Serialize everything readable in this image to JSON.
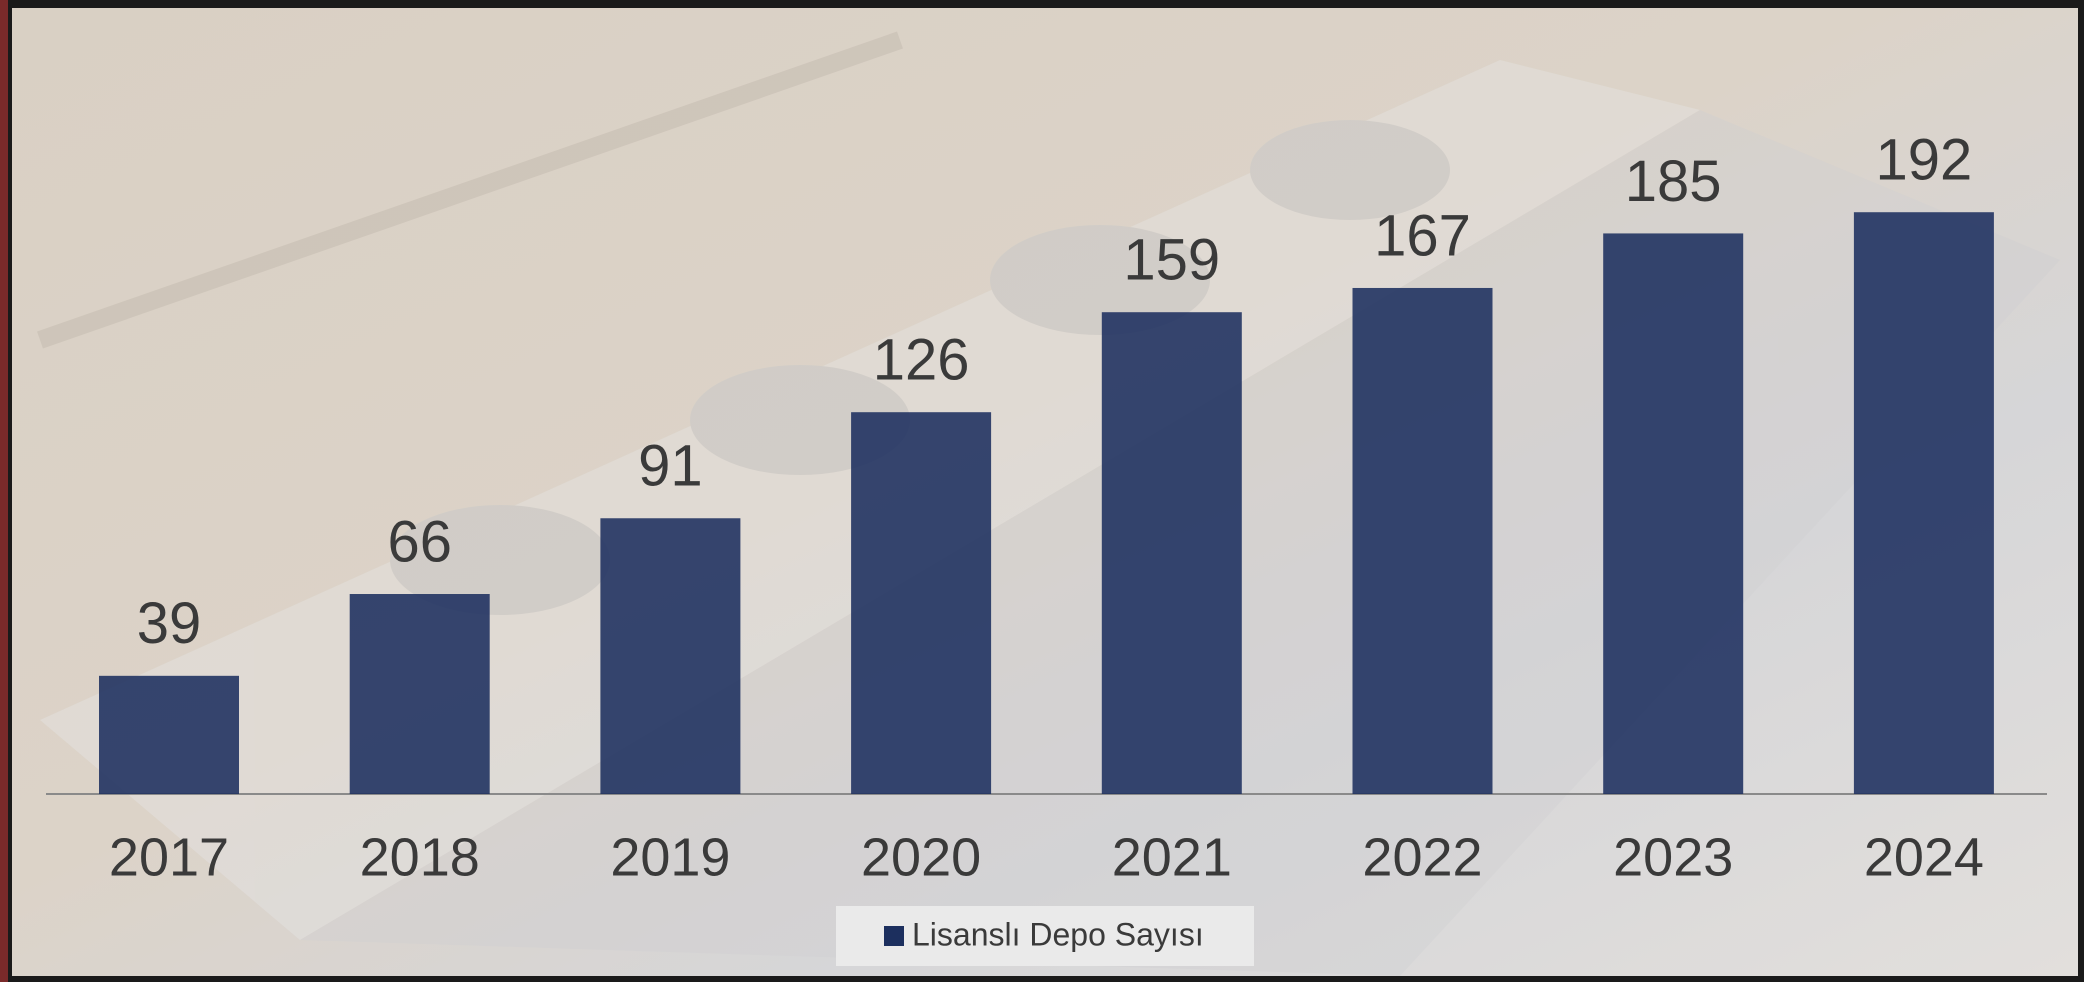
{
  "chart_data": {
    "type": "bar",
    "categories": [
      "2017",
      "2018",
      "2019",
      "2020",
      "2021",
      "2022",
      "2023",
      "2024"
    ],
    "series": [
      {
        "name": "Lisanslı Depo Sayısı",
        "color": "#1c2f5e",
        "values": [
          39,
          66,
          91,
          126,
          159,
          167,
          185,
          192
        ]
      }
    ]
  }
}
